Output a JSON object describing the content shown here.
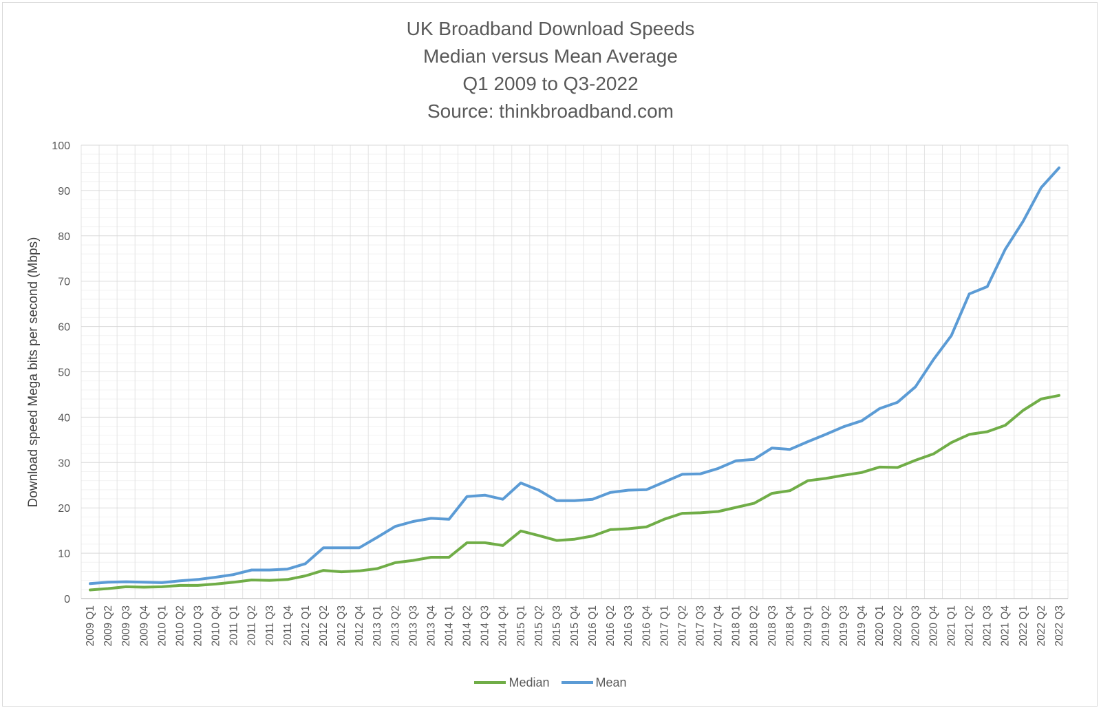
{
  "chart_data": {
    "type": "line",
    "title": "UK Broadband Download Speeds",
    "subtitle_lines": [
      "Median versus Mean Average",
      "Q1 2009 to Q3-2022",
      "Source: thinkbroadband.com"
    ],
    "xlabel": "",
    "ylabel": "Download speed Mega bits per second (Mbps)",
    "ylim": [
      0,
      100
    ],
    "yticks": [
      0,
      10,
      20,
      30,
      40,
      50,
      60,
      70,
      80,
      90,
      100
    ],
    "grid": true,
    "legend_position": "bottom",
    "categories": [
      "2009 Q1",
      "2009 Q2",
      "2009 Q3",
      "2009 Q4",
      "2010 Q1",
      "2010 Q2",
      "2010 Q3",
      "2010 Q4",
      "2011 Q1",
      "2011 Q2",
      "2011 Q3",
      "2011 Q4",
      "2012 Q1",
      "2012 Q2",
      "2012 Q3",
      "2012 Q4",
      "2013 Q1",
      "2013 Q2",
      "2013 Q3",
      "2013 Q4",
      "2014 Q1",
      "2014 Q2",
      "2014 Q3",
      "2014 Q4",
      "2015 Q1",
      "2015 Q2",
      "2015 Q3",
      "2015 Q4",
      "2016 Q1",
      "2016 Q2",
      "2016 Q3",
      "2016 Q4",
      "2017 Q1",
      "2017 Q2",
      "2017 Q3",
      "2017 Q4",
      "2018 Q1",
      "2018 Q2",
      "2018 Q3",
      "2018 Q4",
      "2019 Q1",
      "2019 Q2",
      "2019 Q3",
      "2019 Q4",
      "2020 Q1",
      "2020 Q2",
      "2020 Q3",
      "2020 Q4",
      "2021 Q1",
      "2021 Q2",
      "2021 Q3",
      "2021 Q4",
      "2022 Q1",
      "2022 Q2",
      "2022 Q3"
    ],
    "series": [
      {
        "name": "Median",
        "color": "#70ad47",
        "values": [
          1.9,
          2.2,
          2.6,
          2.5,
          2.6,
          2.9,
          2.9,
          3.2,
          3.6,
          4.1,
          4.0,
          4.2,
          5.0,
          6.2,
          5.9,
          6.1,
          6.6,
          7.9,
          8.4,
          9.1,
          9.1,
          12.3,
          12.3,
          11.7,
          14.9,
          13.9,
          12.8,
          13.1,
          13.8,
          15.2,
          15.4,
          15.8,
          17.5,
          18.8,
          18.9,
          19.2,
          20.1,
          21.0,
          23.2,
          23.8,
          26.0,
          26.5,
          27.2,
          27.8,
          29.0,
          28.9,
          30.5,
          31.9,
          34.4,
          36.2,
          36.8,
          38.2,
          41.5,
          44.0,
          44.8
        ]
      },
      {
        "name": "Mean",
        "color": "#5b9bd5",
        "values": [
          3.3,
          3.6,
          3.7,
          3.6,
          3.5,
          3.9,
          4.2,
          4.7,
          5.3,
          6.3,
          6.3,
          6.5,
          7.7,
          11.2,
          11.2,
          11.2,
          13.5,
          15.9,
          17.0,
          17.7,
          17.5,
          22.5,
          22.8,
          21.9,
          25.5,
          23.9,
          21.6,
          21.6,
          21.9,
          23.4,
          23.9,
          24.0,
          25.7,
          27.4,
          27.5,
          28.7,
          30.4,
          30.7,
          33.2,
          32.9,
          34.6,
          36.2,
          37.9,
          39.2,
          41.9,
          43.3,
          46.7,
          52.7,
          58.0,
          67.2,
          68.8,
          77.0,
          83.2,
          90.6,
          95.0
        ]
      }
    ]
  }
}
